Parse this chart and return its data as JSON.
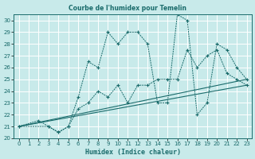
{
  "title": "Courbe de l'humidex pour Temelin",
  "xlabel": "Humidex (Indice chaleur)",
  "bg_color": "#c8eaea",
  "line_color": "#1a6b6b",
  "grid_color": "#ffffff",
  "xlim": [
    -0.5,
    23.5
  ],
  "ylim": [
    20,
    30.5
  ],
  "xtick_labels": [
    "0",
    "1",
    "2",
    "3",
    "4",
    "5",
    "6",
    "7",
    "8",
    "9",
    "10",
    "11",
    "12",
    "13",
    "14",
    "15",
    "16",
    "17",
    "18",
    "19",
    "20",
    "21",
    "22",
    "23"
  ],
  "xtick_vals": [
    0,
    1,
    2,
    3,
    4,
    5,
    6,
    7,
    8,
    9,
    10,
    11,
    12,
    13,
    14,
    15,
    16,
    17,
    18,
    19,
    20,
    21,
    22,
    23
  ],
  "ytick_vals": [
    20,
    21,
    22,
    23,
    24,
    25,
    26,
    27,
    28,
    29,
    30
  ],
  "series": [
    {
      "x": [
        0,
        2,
        3,
        4,
        5,
        6,
        7,
        8,
        9,
        10,
        11,
        12,
        13,
        14,
        15,
        16,
        17,
        18,
        19,
        20,
        21,
        22,
        23
      ],
      "y": [
        21,
        21.5,
        21,
        20.5,
        21,
        23.5,
        26.5,
        26,
        29,
        28,
        29.0,
        29.0,
        28.0,
        23.0,
        23.0,
        30.5,
        30.0,
        22.0,
        23.0,
        28.0,
        27.5,
        26.0,
        25.0
      ],
      "style": "dotted_marker"
    },
    {
      "x": [
        0,
        3,
        4,
        5,
        6,
        7,
        8,
        9,
        10,
        11,
        12,
        13,
        14,
        15,
        16,
        17,
        18,
        19,
        20,
        21,
        22,
        23
      ],
      "y": [
        21,
        21,
        20.5,
        21.0,
        22.5,
        23.0,
        24.0,
        23.5,
        24.5,
        23.0,
        24.5,
        24.5,
        25.0,
        25.0,
        25.0,
        27.5,
        26.0,
        27.0,
        27.5,
        25.5,
        25.0,
        24.5
      ],
      "style": "dotted_marker"
    },
    {
      "x": [
        0,
        23
      ],
      "y": [
        21,
        25.0
      ],
      "style": "solid"
    },
    {
      "x": [
        0,
        23
      ],
      "y": [
        21,
        24.5
      ],
      "style": "solid"
    }
  ]
}
